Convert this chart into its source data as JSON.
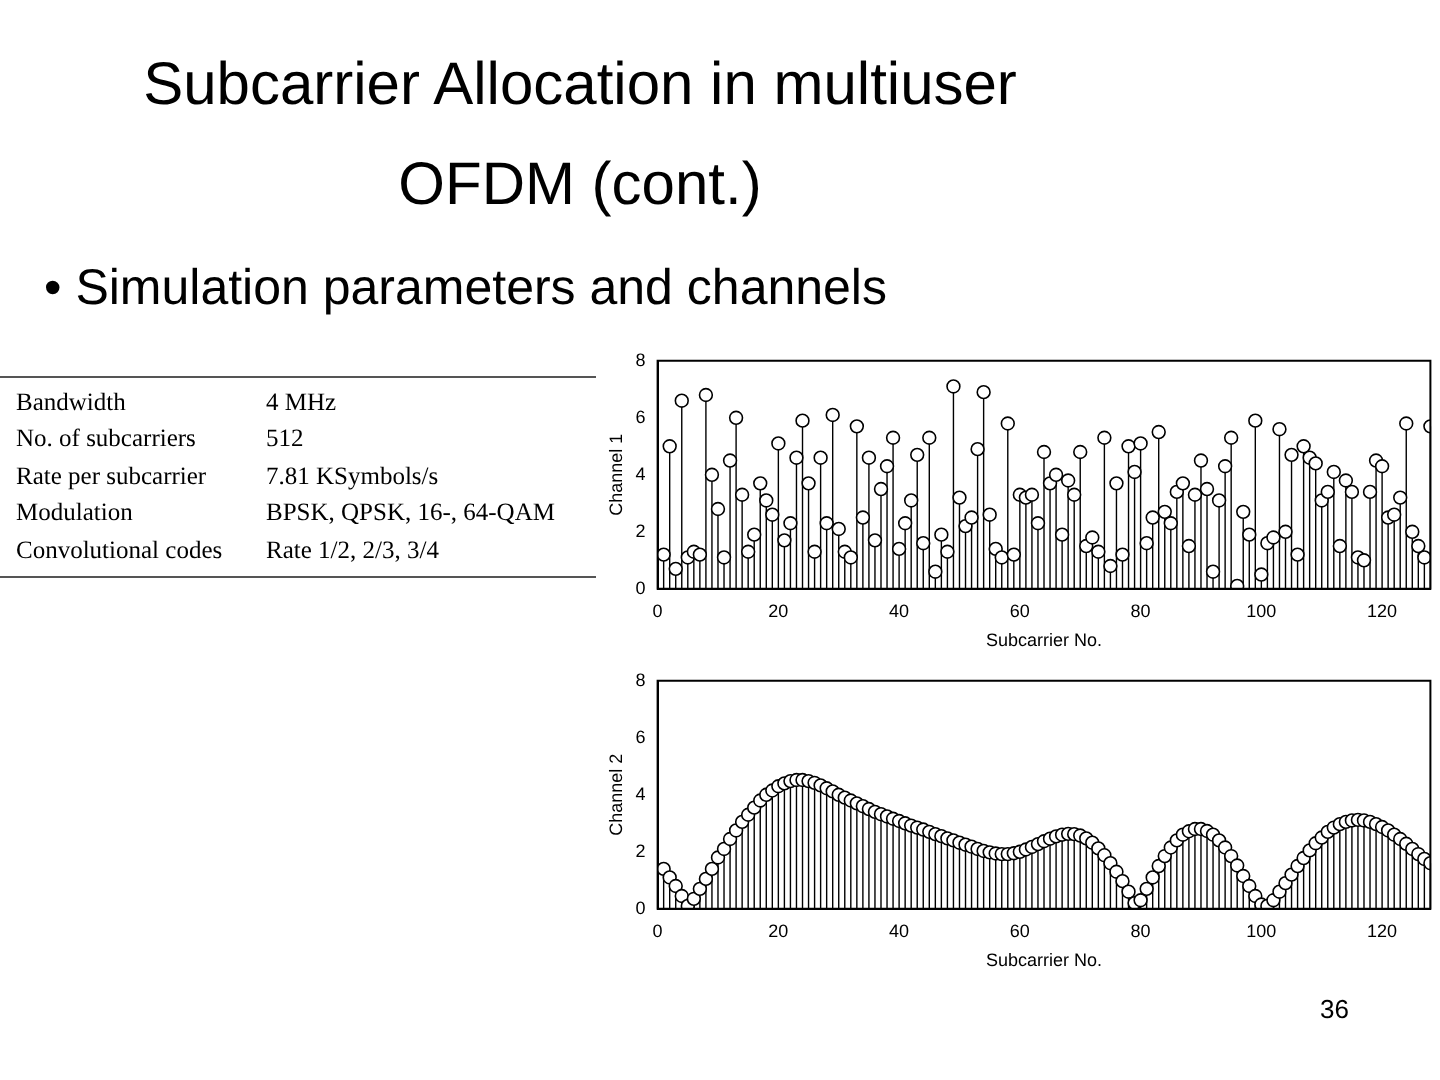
{
  "chart_data": [
    {
      "type": "other",
      "title": "Subcarrier Allocation in multiuser OFDM (cont.)",
      "subtitle": "• Simulation parameters and channels",
      "annotations": [
        "Bandwidth",
        "4 MHz",
        "No. of subcarriers",
        "512",
        "Rate per subcarrier",
        "7.81 KSymbols/s",
        "Modulation",
        "BPSK, QPSK, 16-, 64-QAM",
        "Convolutional codes",
        "Rate 1/2, 2/3, 3/4",
        "36"
      ]
    },
    {
      "type": "lollipop",
      "xlabel": "Subcarrier No.",
      "ylabel": "Channel 1",
      "marker": "circle",
      "xlim": [
        0,
        128
      ],
      "xticks": [
        0,
        20,
        40,
        60,
        80,
        100,
        120
      ],
      "ylim": [
        0,
        8
      ],
      "yticks": [
        0,
        2,
        4,
        6,
        8
      ],
      "x": [
        1,
        2,
        3,
        4,
        5,
        6,
        7,
        8,
        9,
        10,
        11,
        12,
        13,
        14,
        15,
        16,
        17,
        18,
        19,
        20,
        21,
        22,
        23,
        24,
        25,
        26,
        27,
        28,
        29,
        30,
        31,
        32,
        33,
        34,
        35,
        36,
        37,
        38,
        39,
        40,
        41,
        42,
        43,
        44,
        45,
        46,
        47,
        48,
        49,
        50,
        51,
        52,
        53,
        54,
        55,
        56,
        57,
        58,
        59,
        60,
        61,
        62,
        63,
        64,
        65,
        66,
        67,
        68,
        69,
        70,
        71,
        72,
        73,
        74,
        75,
        76,
        77,
        78,
        79,
        80,
        81,
        82,
        83,
        84,
        85,
        86,
        87,
        88,
        89,
        90,
        91,
        92,
        93,
        94,
        95,
        96,
        97,
        98,
        99,
        100,
        101,
        102,
        103,
        104,
        105,
        106,
        107,
        108,
        109,
        110,
        111,
        112,
        113,
        114,
        115,
        116,
        117,
        118,
        119,
        120,
        121,
        122,
        123,
        124,
        125,
        126,
        127,
        128
      ],
      "series": [
        {
          "color": "#000000",
          "values": [
            1.2,
            5.0,
            0.7,
            6.6,
            1.1,
            1.3,
            1.2,
            6.8,
            4.0,
            2.8,
            1.1,
            4.5,
            6.0,
            3.3,
            1.3,
            1.9,
            3.7,
            3.1,
            2.6,
            5.1,
            1.7,
            2.3,
            4.6,
            5.9,
            3.7,
            1.3,
            4.6,
            2.3,
            6.1,
            2.1,
            1.3,
            1.1,
            5.7,
            2.5,
            4.6,
            1.7,
            3.5,
            4.3,
            5.3,
            1.4,
            2.3,
            3.1,
            4.7,
            1.6,
            5.3,
            0.6,
            1.9,
            1.3,
            7.1,
            3.2,
            2.2,
            2.5,
            4.9,
            6.9,
            2.6,
            1.4,
            1.1,
            5.8,
            1.2,
            3.3,
            3.2,
            3.3,
            2.3,
            4.8,
            3.7,
            4.0,
            1.9,
            3.8,
            3.3,
            4.8,
            1.5,
            1.8,
            1.3,
            5.3,
            0.8,
            3.7,
            1.2,
            5.0,
            4.1,
            5.1,
            1.6,
            2.5,
            5.5,
            2.7,
            2.3,
            3.4,
            3.7,
            1.5,
            3.3,
            4.5,
            3.5,
            0.6,
            3.1,
            4.3,
            5.3,
            0.1,
            2.7,
            1.9,
            5.9,
            0.5,
            1.6,
            1.8,
            5.6,
            2.0,
            4.7,
            1.2,
            5.0,
            4.6,
            4.4,
            3.1,
            3.4,
            4.1,
            1.5,
            3.8,
            3.4,
            1.1,
            1.0,
            3.4,
            4.5,
            4.3,
            2.5,
            2.6,
            3.2,
            5.8,
            2.0,
            1.5,
            1.1,
            5.7
          ]
        }
      ]
    },
    {
      "type": "lollipop",
      "xlabel": "Subcarrier No.",
      "ylabel": "Channel 2",
      "marker": "circle",
      "xlim": [
        0,
        128
      ],
      "xticks": [
        0,
        20,
        40,
        60,
        80,
        100,
        120
      ],
      "ylim": [
        0,
        8
      ],
      "yticks": [
        0,
        2,
        4,
        6,
        8
      ],
      "x": [
        1,
        2,
        3,
        4,
        5,
        6,
        7,
        8,
        9,
        10,
        11,
        12,
        13,
        14,
        15,
        16,
        17,
        18,
        19,
        20,
        21,
        22,
        23,
        24,
        25,
        26,
        27,
        28,
        29,
        30,
        31,
        32,
        33,
        34,
        35,
        36,
        37,
        38,
        39,
        40,
        41,
        42,
        43,
        44,
        45,
        46,
        47,
        48,
        49,
        50,
        51,
        52,
        53,
        54,
        55,
        56,
        57,
        58,
        59,
        60,
        61,
        62,
        63,
        64,
        65,
        66,
        67,
        68,
        69,
        70,
        71,
        72,
        73,
        74,
        75,
        76,
        77,
        78,
        79,
        80,
        81,
        82,
        83,
        84,
        85,
        86,
        87,
        88,
        89,
        90,
        91,
        92,
        93,
        94,
        95,
        96,
        97,
        98,
        99,
        100,
        101,
        102,
        103,
        104,
        105,
        106,
        107,
        108,
        109,
        110,
        111,
        112,
        113,
        114,
        115,
        116,
        117,
        118,
        119,
        120,
        121,
        122,
        123,
        124,
        125,
        126,
        127,
        128
      ],
      "series": [
        {
          "color": "#000000",
          "values": [
            1.4,
            1.1,
            0.8,
            0.45,
            0.1,
            0.35,
            0.7,
            1.05,
            1.4,
            1.8,
            2.1,
            2.45,
            2.75,
            3.05,
            3.3,
            3.55,
            3.8,
            4.0,
            4.15,
            4.3,
            4.4,
            4.48,
            4.52,
            4.52,
            4.48,
            4.42,
            4.33,
            4.23,
            4.12,
            4.0,
            3.9,
            3.8,
            3.7,
            3.6,
            3.5,
            3.4,
            3.32,
            3.24,
            3.16,
            3.08,
            3.0,
            2.92,
            2.85,
            2.78,
            2.7,
            2.62,
            2.55,
            2.47,
            2.4,
            2.32,
            2.25,
            2.18,
            2.1,
            2.03,
            1.98,
            1.94,
            1.92,
            1.92,
            1.95,
            2.0,
            2.08,
            2.17,
            2.27,
            2.37,
            2.46,
            2.54,
            2.6,
            2.63,
            2.62,
            2.57,
            2.47,
            2.32,
            2.12,
            1.88,
            1.6,
            1.3,
            0.97,
            0.6,
            0.2,
            0.3,
            0.7,
            1.1,
            1.5,
            1.85,
            2.15,
            2.4,
            2.6,
            2.72,
            2.8,
            2.8,
            2.73,
            2.6,
            2.4,
            2.15,
            1.85,
            1.52,
            1.15,
            0.8,
            0.45,
            0.15,
            0.1,
            0.3,
            0.6,
            0.9,
            1.2,
            1.5,
            1.78,
            2.05,
            2.3,
            2.5,
            2.7,
            2.85,
            2.97,
            3.05,
            3.1,
            3.12,
            3.1,
            3.05,
            2.97,
            2.87,
            2.75,
            2.6,
            2.45,
            2.28,
            2.1,
            1.92,
            1.75,
            1.6
          ]
        }
      ]
    }
  ]
}
